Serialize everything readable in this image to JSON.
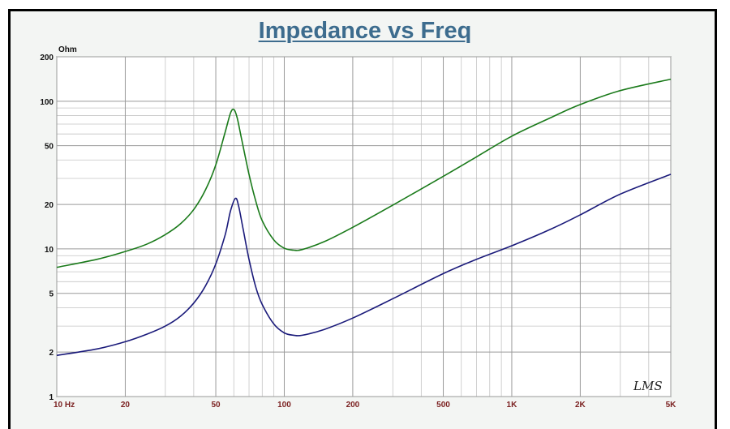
{
  "chart_data": {
    "type": "line",
    "title": "Impedance vs Freq",
    "ylabel": "Ohm",
    "xlabel": "",
    "x_scale": "log",
    "y_scale": "log",
    "xlim": [
      10,
      5000
    ],
    "ylim": [
      1,
      200
    ],
    "x_ticks": [
      {
        "value": 10,
        "label": "10  Hz"
      },
      {
        "value": 20,
        "label": "20"
      },
      {
        "value": 50,
        "label": "50"
      },
      {
        "value": 100,
        "label": "100"
      },
      {
        "value": 200,
        "label": "200"
      },
      {
        "value": 500,
        "label": "500"
      },
      {
        "value": 1000,
        "label": "1K"
      },
      {
        "value": 2000,
        "label": "2K"
      },
      {
        "value": 5000,
        "label": "5K"
      }
    ],
    "y_ticks": [
      {
        "value": 200,
        "label": "200"
      },
      {
        "value": 100,
        "label": "100"
      },
      {
        "value": 50,
        "label": "50"
      },
      {
        "value": 20,
        "label": "20"
      },
      {
        "value": 10,
        "label": "10"
      },
      {
        "value": 5,
        "label": "5"
      },
      {
        "value": 2,
        "label": "2"
      },
      {
        "value": 1,
        "label": "1"
      }
    ],
    "grid": true,
    "watermark": "LMS",
    "series": [
      {
        "color": "#1a7a1a",
        "points": [
          [
            10,
            7.5
          ],
          [
            15,
            8.5
          ],
          [
            20,
            9.6
          ],
          [
            25,
            10.8
          ],
          [
            30,
            12.5
          ],
          [
            35,
            14.8
          ],
          [
            40,
            18.5
          ],
          [
            45,
            25
          ],
          [
            50,
            37
          ],
          [
            55,
            62
          ],
          [
            58,
            83
          ],
          [
            60,
            88
          ],
          [
            62,
            78
          ],
          [
            65,
            55
          ],
          [
            70,
            32
          ],
          [
            75,
            21
          ],
          [
            80,
            15.5
          ],
          [
            90,
            11.5
          ],
          [
            100,
            10.1
          ],
          [
            110,
            9.8
          ],
          [
            120,
            9.9
          ],
          [
            150,
            11.2
          ],
          [
            200,
            14
          ],
          [
            300,
            19.8
          ],
          [
            500,
            31
          ],
          [
            700,
            42
          ],
          [
            1000,
            58
          ],
          [
            1500,
            78
          ],
          [
            2000,
            95
          ],
          [
            3000,
            118
          ],
          [
            5000,
            141
          ]
        ]
      },
      {
        "color": "#1a1a7a",
        "points": [
          [
            10,
            1.9
          ],
          [
            15,
            2.1
          ],
          [
            20,
            2.35
          ],
          [
            25,
            2.65
          ],
          [
            30,
            3.0
          ],
          [
            35,
            3.5
          ],
          [
            40,
            4.3
          ],
          [
            45,
            5.6
          ],
          [
            50,
            7.9
          ],
          [
            55,
            12.5
          ],
          [
            58,
            18
          ],
          [
            61,
            22
          ],
          [
            63,
            19.5
          ],
          [
            66,
            13.5
          ],
          [
            70,
            8.5
          ],
          [
            75,
            5.5
          ],
          [
            80,
            4.2
          ],
          [
            90,
            3.1
          ],
          [
            100,
            2.7
          ],
          [
            110,
            2.6
          ],
          [
            120,
            2.6
          ],
          [
            150,
            2.85
          ],
          [
            200,
            3.4
          ],
          [
            300,
            4.6
          ],
          [
            500,
            6.8
          ],
          [
            700,
            8.5
          ],
          [
            1000,
            10.5
          ],
          [
            1500,
            13.7
          ],
          [
            2000,
            17
          ],
          [
            3000,
            23.5
          ],
          [
            5000,
            32
          ]
        ]
      }
    ]
  }
}
